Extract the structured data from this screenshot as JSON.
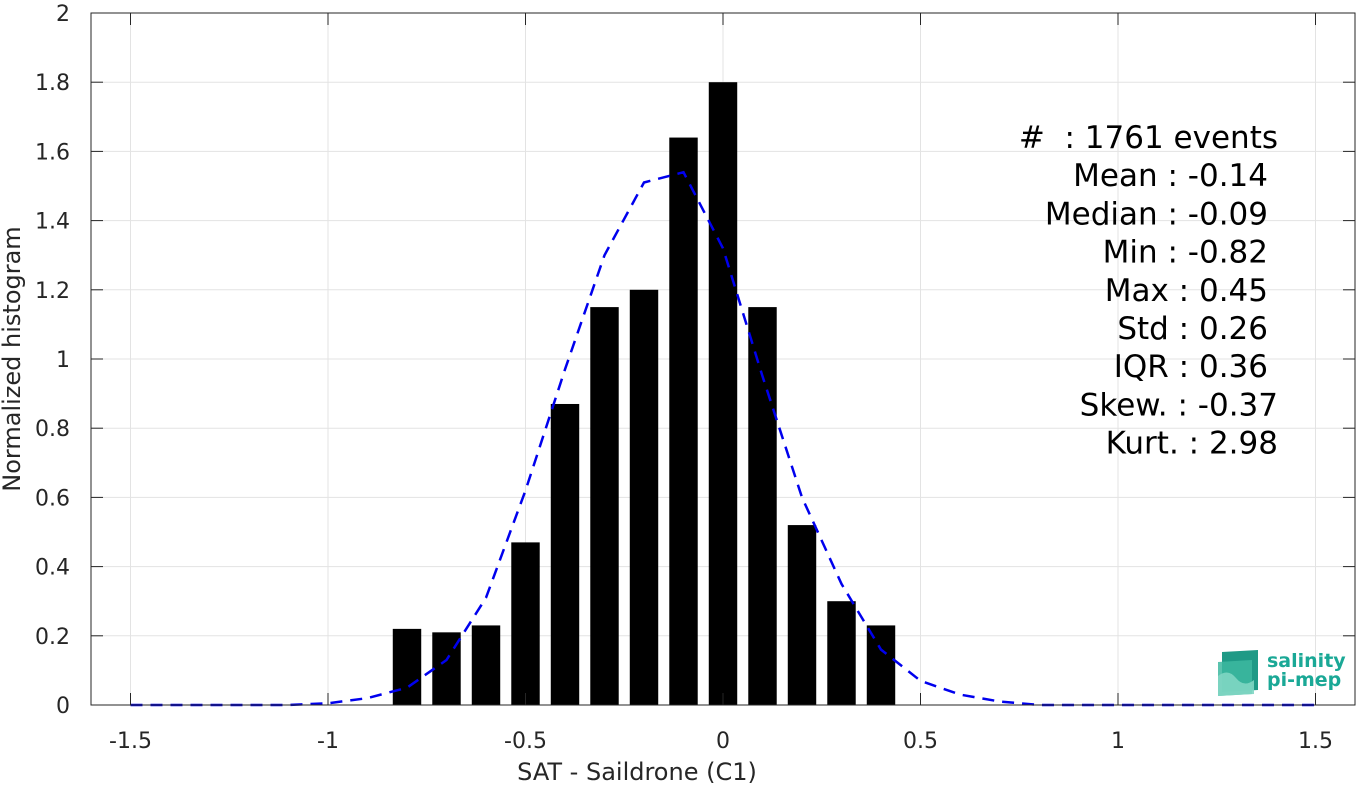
{
  "chart_data": {
    "type": "bar",
    "xlabel": "SAT - Saildrone (C1)",
    "ylabel": "Normalized histogram",
    "xlim": [
      -1.6,
      1.6
    ],
    "ylim": [
      0,
      2
    ],
    "xticks": [
      -1.5,
      -1,
      -0.5,
      0,
      0.5,
      1,
      1.5
    ],
    "xtick_labels": [
      "-1.5",
      "-1",
      "-0.5",
      "0",
      "0.5",
      "1",
      "1.5"
    ],
    "yticks": [
      0,
      0.2,
      0.4,
      0.6,
      0.8,
      1,
      1.2,
      1.4,
      1.6,
      1.8,
      2
    ],
    "ytick_labels": [
      "0",
      "0.2",
      "0.4",
      "0.6",
      "0.8",
      "1",
      "1.2",
      "1.4",
      "1.6",
      "1.8",
      "2"
    ],
    "grid": true,
    "bar_width": 0.072,
    "bars": {
      "x": [
        -0.8,
        -0.7,
        -0.6,
        -0.5,
        -0.4,
        -0.3,
        -0.2,
        -0.1,
        0.0,
        0.1,
        0.2,
        0.3,
        0.4
      ],
      "values": [
        0.22,
        0.21,
        0.23,
        0.47,
        0.87,
        1.15,
        1.2,
        1.64,
        1.8,
        1.15,
        0.52,
        0.3,
        0.23
      ],
      "color": "#000000"
    },
    "fit_curve": {
      "style": "dashed",
      "color": "#0000ee",
      "x": [
        -1.5,
        -1.4,
        -1.3,
        -1.2,
        -1.1,
        -1.0,
        -0.9,
        -0.8,
        -0.7,
        -0.6,
        -0.5,
        -0.4,
        -0.3,
        -0.2,
        -0.1,
        0.0,
        0.1,
        0.2,
        0.3,
        0.4,
        0.5,
        0.6,
        0.7,
        0.8,
        0.9,
        1.0,
        1.1,
        1.2,
        1.3,
        1.4,
        1.5
      ],
      "y": [
        0.0,
        0.0,
        0.0,
        0.0,
        0.0,
        0.005,
        0.02,
        0.05,
        0.13,
        0.31,
        0.62,
        0.97,
        1.3,
        1.51,
        1.54,
        1.32,
        0.95,
        0.6,
        0.35,
        0.16,
        0.07,
        0.03,
        0.01,
        0.0,
        0.0,
        0.0,
        0.0,
        0.0,
        0.0,
        0.0,
        0.0
      ]
    },
    "stats": [
      "#  : 1761 events",
      "Mean : -0.14",
      "Median : -0.09",
      "Min : -0.82",
      "Max : 0.45",
      "Std : 0.26",
      "IQR : 0.36",
      "Skew. : -0.37",
      "Kurt. : 2.98"
    ]
  },
  "logo": {
    "line1": "salinity",
    "line2": "pi-mep"
  }
}
